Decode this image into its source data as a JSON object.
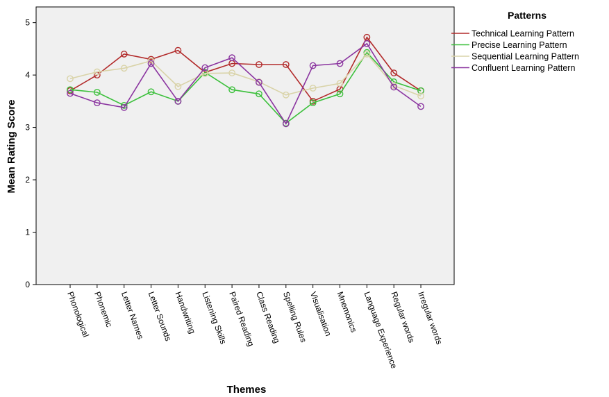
{
  "chart_data": {
    "type": "line",
    "title": "",
    "xlabel": "Themes",
    "ylabel": "Mean Rating Score",
    "ylim": [
      0,
      5.3
    ],
    "yticks": [
      0,
      1,
      2,
      3,
      4,
      5
    ],
    "grid": false,
    "legend_title": "Patterns",
    "legend_position": "top-right",
    "categories": [
      "Phonological",
      "Phonemic",
      "Letter Names",
      "Letter Sounds",
      "Handwriting",
      "Listening Skills",
      "Paired Reading",
      "Class Reading",
      "Spelling Rules",
      "Visualisation",
      "Mnemonics",
      "Language Experience",
      "Regular words",
      "Irregular words"
    ],
    "series": [
      {
        "name": "Technical Learning Pattern",
        "color": "#b22a2a",
        "values": [
          3.7,
          4.0,
          4.4,
          4.3,
          4.47,
          4.05,
          4.22,
          4.2,
          4.2,
          3.5,
          3.73,
          4.72,
          4.04,
          3.7
        ]
      },
      {
        "name": "Precise Learning Pattern",
        "color": "#3cc03c",
        "values": [
          3.72,
          3.67,
          3.42,
          3.68,
          3.5,
          4.05,
          3.72,
          3.64,
          3.08,
          3.47,
          3.64,
          4.43,
          3.87,
          3.7
        ]
      },
      {
        "name": "Sequential Learning Pattern",
        "color": "#d9d3a8",
        "values": [
          3.93,
          4.06,
          4.13,
          4.27,
          3.78,
          4.03,
          4.04,
          3.87,
          3.62,
          3.75,
          3.84,
          4.4,
          3.8,
          3.6
        ]
      },
      {
        "name": "Confluent Learning Pattern",
        "color": "#8b35a0",
        "values": [
          3.65,
          3.47,
          3.38,
          4.22,
          3.5,
          4.14,
          4.33,
          3.86,
          3.07,
          4.18,
          4.22,
          4.6,
          3.77,
          3.4
        ]
      }
    ]
  }
}
